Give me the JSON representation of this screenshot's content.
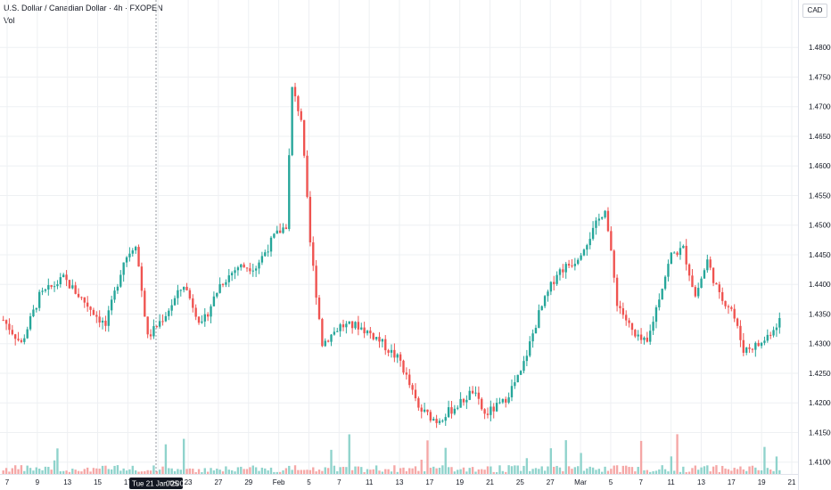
{
  "header": {
    "title": "U.S. Dollar / Canadian Dollar · 4h · FXOPEN",
    "volume_label": "Vol"
  },
  "currency_badge": "CAD",
  "crosshair": {
    "label": "Tue 21 Jan '25",
    "time": "00:00"
  },
  "colors": {
    "up": "#26a69a",
    "down": "#ef5350",
    "up_vol": "#8fd3cc",
    "down_vol": "#f5a7a6",
    "grid": "#eef0f3",
    "axis_text": "#131722"
  },
  "chart_data": {
    "type": "candlestick",
    "symbol": "USDCAD",
    "timeframe": "4h",
    "ylim": [
      1.408,
      1.4865
    ],
    "y_ticks": [
      "1.48000",
      "1.47500",
      "1.47000",
      "1.46500",
      "1.46000",
      "1.45500",
      "1.45000",
      "1.44500",
      "1.44000",
      "1.43500",
      "1.43000",
      "1.42500",
      "1.42000",
      "1.41500",
      "1.41000"
    ],
    "x_ticks": [
      "7",
      "9",
      "13",
      "15",
      "17",
      "21",
      "23",
      "27",
      "29",
      "Feb",
      "5",
      "7",
      "11",
      "13",
      "17",
      "19",
      "21",
      "25",
      "27",
      "Mar",
      "5",
      "7",
      "11",
      "13",
      "17",
      "19",
      "21"
    ],
    "keypoints": [
      {
        "bar": 0,
        "price": 1.434
      },
      {
        "bar": 6,
        "price": 1.43
      },
      {
        "bar": 12,
        "price": 1.438
      },
      {
        "bar": 20,
        "price": 1.441
      },
      {
        "bar": 28,
        "price": 1.4365
      },
      {
        "bar": 34,
        "price": 1.433
      },
      {
        "bar": 40,
        "price": 1.444
      },
      {
        "bar": 44,
        "price": 1.447
      },
      {
        "bar": 48,
        "price": 1.431
      },
      {
        "bar": 54,
        "price": 1.435
      },
      {
        "bar": 60,
        "price": 1.44
      },
      {
        "bar": 66,
        "price": 1.433
      },
      {
        "bar": 72,
        "price": 1.44
      },
      {
        "bar": 78,
        "price": 1.443
      },
      {
        "bar": 84,
        "price": 1.443
      },
      {
        "bar": 90,
        "price": 1.448
      },
      {
        "bar": 94,
        "price": 1.45
      },
      {
        "bar": 96,
        "price": 1.473
      },
      {
        "bar": 99,
        "price": 1.468
      },
      {
        "bar": 102,
        "price": 1.447
      },
      {
        "bar": 106,
        "price": 1.43
      },
      {
        "bar": 112,
        "price": 1.433
      },
      {
        "bar": 118,
        "price": 1.433
      },
      {
        "bar": 124,
        "price": 1.431
      },
      {
        "bar": 132,
        "price": 1.427
      },
      {
        "bar": 138,
        "price": 1.419
      },
      {
        "bar": 144,
        "price": 1.417
      },
      {
        "bar": 152,
        "price": 1.42
      },
      {
        "bar": 156,
        "price": 1.422
      },
      {
        "bar": 160,
        "price": 1.418
      },
      {
        "bar": 166,
        "price": 1.42
      },
      {
        "bar": 172,
        "price": 1.425
      },
      {
        "bar": 178,
        "price": 1.435
      },
      {
        "bar": 184,
        "price": 1.442
      },
      {
        "bar": 190,
        "price": 1.444
      },
      {
        "bar": 196,
        "price": 1.449
      },
      {
        "bar": 200,
        "price": 1.453
      },
      {
        "bar": 204,
        "price": 1.437
      },
      {
        "bar": 210,
        "price": 1.431
      },
      {
        "bar": 214,
        "price": 1.43
      },
      {
        "bar": 218,
        "price": 1.438
      },
      {
        "bar": 222,
        "price": 1.445
      },
      {
        "bar": 226,
        "price": 1.446
      },
      {
        "bar": 230,
        "price": 1.438
      },
      {
        "bar": 234,
        "price": 1.444
      },
      {
        "bar": 238,
        "price": 1.438
      },
      {
        "bar": 242,
        "price": 1.436
      },
      {
        "bar": 246,
        "price": 1.429
      },
      {
        "bar": 252,
        "price": 1.43
      },
      {
        "bar": 258,
        "price": 1.434
      }
    ]
  }
}
